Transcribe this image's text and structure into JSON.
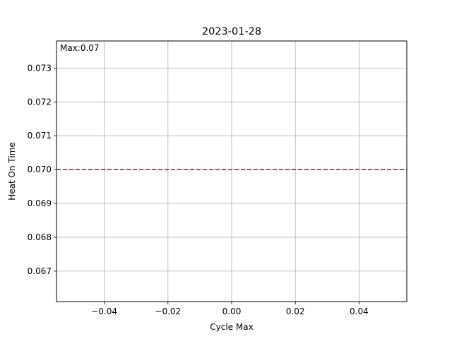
{
  "chart_data": {
    "type": "line",
    "title": "2023-01-28",
    "xlabel": "Cycle Max",
    "ylabel": "Heat On Time",
    "xlim": [
      -0.055,
      0.055
    ],
    "ylim": [
      0.0661,
      0.0738
    ],
    "xticks": [
      -0.04,
      -0.02,
      0.0,
      0.02,
      0.04
    ],
    "xtick_labels": [
      "−0.04",
      "−0.02",
      "0.00",
      "0.02",
      "0.04"
    ],
    "yticks": [
      0.067,
      0.068,
      0.069,
      0.07,
      0.071,
      0.072,
      0.073
    ],
    "ytick_labels": [
      "0.067",
      "0.068",
      "0.069",
      "0.070",
      "0.071",
      "0.072",
      "0.073"
    ],
    "grid": true,
    "reference_line": {
      "orientation": "horizontal",
      "y": 0.07,
      "style": "dashed",
      "color": "#ff0000"
    },
    "annotation": "Max:0.07"
  }
}
